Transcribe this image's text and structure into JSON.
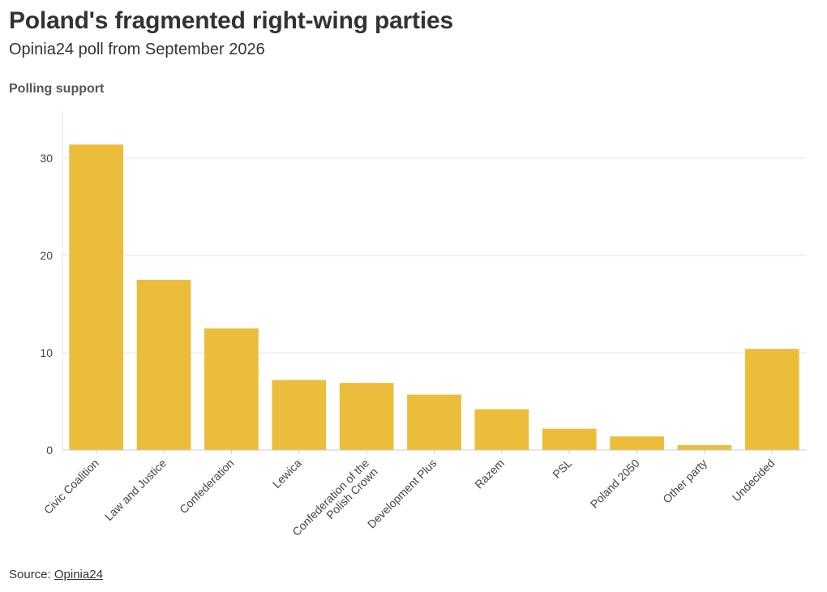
{
  "header": {
    "title": "Poland's fragmented right-wing parties",
    "subtitle": "Opinia24 poll from September 2026"
  },
  "footer": {
    "source_prefix": "Source: ",
    "source_link": "Opinia24"
  },
  "colors": {
    "bar": "#ebbd3b",
    "grid": "#e6e6e6",
    "axis": "#cccccc"
  },
  "chart_data": {
    "type": "bar",
    "title": "Poland's fragmented right-wing parties",
    "subtitle": "Opinia24 poll from September 2026",
    "ylabel": "Polling support",
    "xlabel": "",
    "categories": [
      "Civic Coalition",
      "Law and Justice",
      "Confederation",
      "Lewica",
      "Confederation of the Polish Crown",
      "Development Plus",
      "Razem",
      "PSL",
      "Poland 2050",
      "Other party",
      "Undecided"
    ],
    "category_label_lines": [
      [
        "Civic Coalition"
      ],
      [
        "Law and Justice"
      ],
      [
        "Confederation"
      ],
      [
        "Lewica"
      ],
      [
        "Confederation of the",
        "Polish Crown"
      ],
      [
        "Development Plus"
      ],
      [
        "Razem"
      ],
      [
        "PSL"
      ],
      [
        "Poland 2050"
      ],
      [
        "Other party"
      ],
      [
        "Undecided"
      ]
    ],
    "values": [
      31.4,
      17.5,
      12.5,
      7.2,
      6.9,
      5.7,
      4.2,
      2.2,
      1.4,
      0.5,
      10.4
    ],
    "ylim": [
      0,
      35
    ],
    "yticks": [
      0,
      10,
      20,
      30
    ],
    "grid": true,
    "legend": "none"
  }
}
